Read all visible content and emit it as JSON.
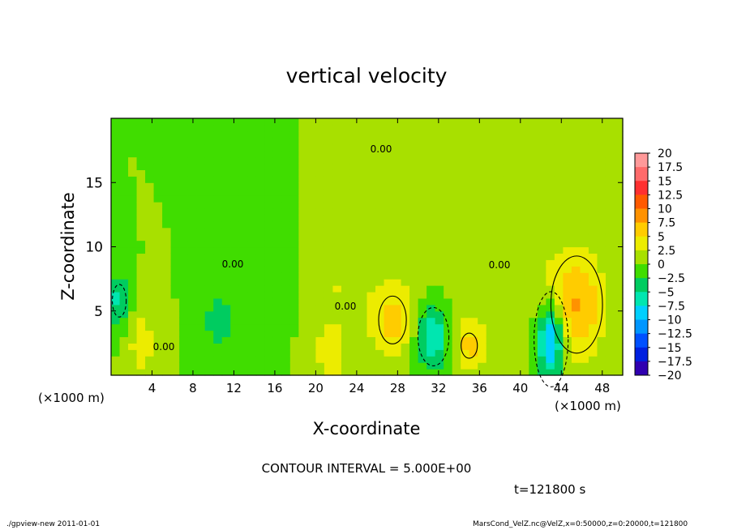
{
  "chart_data": {
    "type": "heatmap",
    "title": "vertical velocity",
    "xlabel": "X-coordinate",
    "ylabel": "Z-coordinate",
    "x_unit": "(×1000 m)",
    "z_unit": "(×1000 m)",
    "xlim": [
      0,
      50
    ],
    "ylim": [
      0,
      20
    ],
    "x_ticks": [
      4,
      8,
      12,
      16,
      20,
      24,
      28,
      32,
      36,
      40,
      44,
      48
    ],
    "y_ticks": [
      5,
      10,
      15
    ],
    "contour_interval_text": "CONTOUR INTERVAL = 5.000E+00",
    "contour_label": "0.00",
    "time_text": "t=121800 s",
    "colorbar": {
      "levels": [
        20,
        17.5,
        15,
        12.5,
        10,
        7.5,
        5,
        2.5,
        0,
        -2.5,
        -5,
        -7.5,
        -10,
        -12.5,
        -15,
        -17.5,
        -20
      ],
      "colors": [
        "#ff9999",
        "#ff6a6a",
        "#ff3030",
        "#ff5a00",
        "#ff9200",
        "#ffcc00",
        "#ecec00",
        "#a8e000",
        "#40dd00",
        "#00cc60",
        "#00e6b0",
        "#00d0ff",
        "#0096ff",
        "#0050ff",
        "#0020e0",
        "#3000b0"
      ]
    },
    "features": [
      {
        "x": 27.5,
        "z": 4.3,
        "w": 6.0,
        "sx": 1.6,
        "sz": 2.2
      },
      {
        "x": 45.5,
        "z": 5.5,
        "w": 7.5,
        "sx": 2.0,
        "sz": 3.0
      },
      {
        "x": 35.0,
        "z": 2.3,
        "w": 5.5,
        "sx": 1.3,
        "sz": 1.6
      },
      {
        "x": 21.5,
        "z": 1.5,
        "w": 4.5,
        "sx": 1.0,
        "sz": 1.5
      },
      {
        "x": 3.0,
        "z": 2.5,
        "w": 4.0,
        "sx": 1.0,
        "sz": 2.0
      },
      {
        "x": 22.0,
        "z": 7.0,
        "w": 2.5,
        "sx": 2.5,
        "sz": 3.0
      },
      {
        "x": 43.0,
        "z": 2.8,
        "w": -12.0,
        "sx": 0.9,
        "sz": 2.0
      },
      {
        "x": 31.5,
        "z": 3.0,
        "w": -7.5,
        "sx": 1.2,
        "sz": 1.8
      },
      {
        "x": 0.8,
        "z": 5.8,
        "w": -6.0,
        "sx": 0.8,
        "sz": 1.5
      },
      {
        "x": 10.5,
        "z": 4.2,
        "w": -3.5,
        "sx": 1.2,
        "sz": 2.0
      },
      {
        "x": 15.0,
        "z": 7.5,
        "w": -2.5,
        "sx": 2.0,
        "sz": 3.0
      },
      {
        "x": 38.0,
        "z": 8.0,
        "w": 2.0,
        "sx": 4.0,
        "sz": 3.0
      }
    ]
  },
  "footer": {
    "left": "./gpview-new  2011-01-01",
    "right": "MarsCond_VelZ.nc@VelZ,x=0:50000,z=0:20000,t=121800"
  }
}
